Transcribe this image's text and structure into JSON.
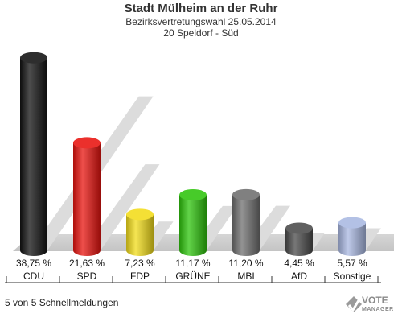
{
  "header": {
    "title": "Stadt Mülheim an der Ruhr",
    "subtitle1": "Bezirksvertretungswahl 25.05.2014",
    "subtitle2": "20 Speldorf - Süd"
  },
  "chart_data": {
    "type": "bar",
    "categories": [
      "CDU",
      "SPD",
      "FDP",
      "GRÜNE",
      "MBI",
      "AfD",
      "Sonstige"
    ],
    "values": [
      38.75,
      21.63,
      7.23,
      11.17,
      11.2,
      4.45,
      5.57
    ],
    "value_labels": [
      "38,75 %",
      "21,63 %",
      "7,23 %",
      "11,17 %",
      "11,20 %",
      "4,45 %",
      "5,57 %"
    ],
    "colors": [
      "#111111",
      "#e8140f",
      "#f2dc1a",
      "#2ec40c",
      "#6f6f6f",
      "#4a4a4a",
      "#a9b8e2"
    ],
    "ylim": [
      0,
      40
    ],
    "grid": false,
    "legend": "none"
  },
  "footer": {
    "status": "5 von 5 Schnellmeldungen"
  },
  "logo": {
    "line1": "VOTE",
    "line2": "MANAGER"
  }
}
